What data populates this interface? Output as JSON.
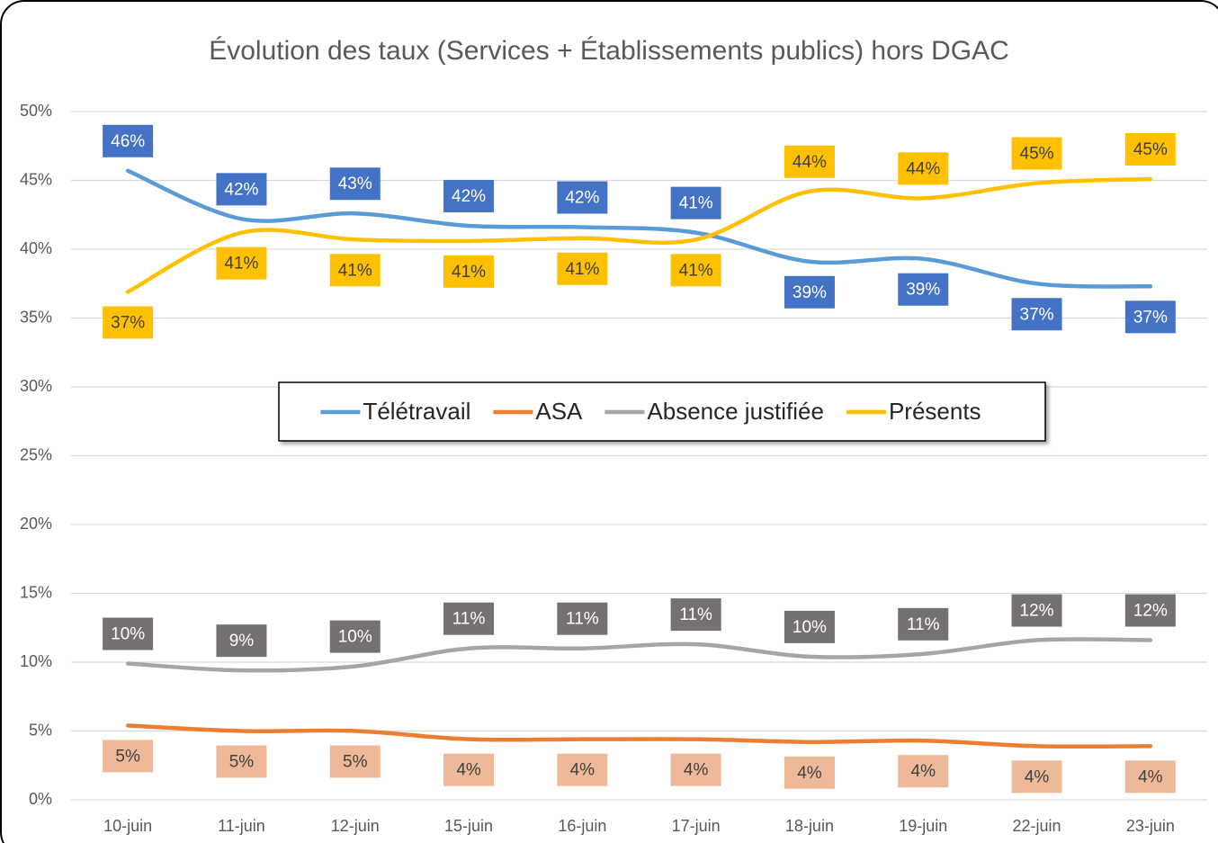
{
  "chart_data": {
    "type": "line",
    "title": "Évolution des taux (Services + Établissements publics) hors DGAC",
    "categories": [
      "10-juin",
      "11-juin",
      "12-juin",
      "15-juin",
      "16-juin",
      "17-juin",
      "18-juin",
      "19-juin",
      "22-juin",
      "23-juin"
    ],
    "series": [
      {
        "name": "Télétravail",
        "color": "#5b9bd5",
        "label_color": "#4472c4",
        "values": [
          45.7,
          42.2,
          42.6,
          41.7,
          41.6,
          41.2,
          39.1,
          39.3,
          37.5,
          37.3
        ],
        "value_labels": [
          "46%",
          "42%",
          "43%",
          "42%",
          "42%",
          "41%",
          "39%",
          "39%",
          "37%",
          "37%"
        ]
      },
      {
        "name": "ASA",
        "color": "#ed7d31",
        "label_color": "#eeb998",
        "values": [
          5.4,
          5.0,
          5.0,
          4.4,
          4.4,
          4.4,
          4.2,
          4.3,
          3.9,
          3.9
        ],
        "value_labels": [
          "5%",
          "5%",
          "5%",
          "4%",
          "4%",
          "4%",
          "4%",
          "4%",
          "4%",
          "4%"
        ]
      },
      {
        "name": "Absence justifiée",
        "color": "#a5a5a5",
        "label_color": "#767171",
        "values": [
          9.9,
          9.4,
          9.7,
          11.0,
          11.0,
          11.3,
          10.4,
          10.6,
          11.6,
          11.6
        ],
        "value_labels": [
          "10%",
          "9%",
          "10%",
          "11%",
          "11%",
          "11%",
          "10%",
          "11%",
          "12%",
          "12%"
        ]
      },
      {
        "name": "Présents",
        "color": "#ffc000",
        "label_color": "#ffc000",
        "values": [
          36.9,
          41.2,
          40.7,
          40.6,
          40.8,
          40.7,
          44.2,
          43.7,
          44.8,
          45.1
        ],
        "value_labels": [
          "37%",
          "41%",
          "41%",
          "41%",
          "41%",
          "41%",
          "44%",
          "44%",
          "45%",
          "45%"
        ]
      }
    ],
    "ylim": [
      0,
      50
    ],
    "yticks": [
      {
        "value": 0,
        "label": "0%"
      },
      {
        "value": 5,
        "label": "5%"
      },
      {
        "value": 10,
        "label": "10%"
      },
      {
        "value": 15,
        "label": "15%"
      },
      {
        "value": 20,
        "label": "20%"
      },
      {
        "value": 25,
        "label": "25%"
      },
      {
        "value": 30,
        "label": "30%"
      },
      {
        "value": 35,
        "label": "35%"
      },
      {
        "value": 40,
        "label": "40%"
      },
      {
        "value": 45,
        "label": "45%"
      },
      {
        "value": 50,
        "label": "50%"
      }
    ],
    "grid": true,
    "legend": "center"
  }
}
